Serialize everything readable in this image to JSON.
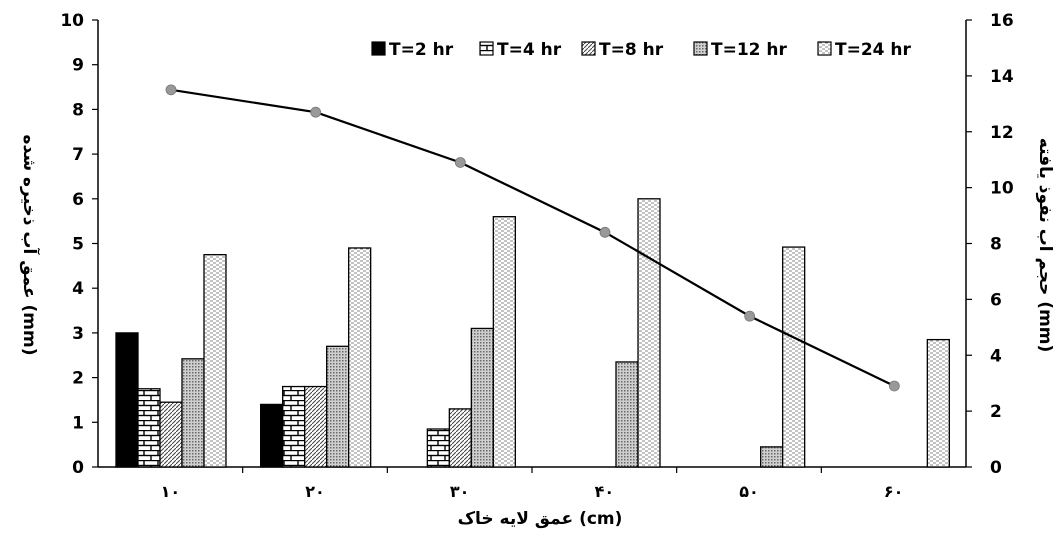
{
  "chart_data": {
    "type": "bar",
    "categories": [
      "۱۰",
      "۲۰",
      "۳۰",
      "۴۰",
      "۵۰",
      "۶۰"
    ],
    "xlabel": "عمق لایه خاک (cm)",
    "ylabel": "عمق آب ذخیره شده (mm)",
    "y2label": "حجم آب نفوذ یافته (mm)",
    "ylim": [
      0,
      10
    ],
    "y2lim": [
      0,
      16
    ],
    "yticks": [
      "0",
      "1",
      "2",
      "3",
      "4",
      "5",
      "6",
      "7",
      "8",
      "9",
      "10"
    ],
    "y2ticks": [
      "0",
      "2",
      "4",
      "6",
      "8",
      "10",
      "12",
      "14",
      "16"
    ],
    "grid": false,
    "legend_position": "top-right",
    "series": [
      {
        "name": "T=2 hr",
        "pattern": "solid-black",
        "values": [
          3.0,
          1.4,
          0,
          0,
          0,
          0
        ]
      },
      {
        "name": "T=4 hr",
        "pattern": "brick",
        "values": [
          1.75,
          1.8,
          0.85,
          0,
          0,
          0
        ]
      },
      {
        "name": "T=8 hr",
        "pattern": "diagonal",
        "values": [
          1.45,
          1.8,
          1.3,
          0,
          0,
          0
        ]
      },
      {
        "name": "T=12 hr",
        "pattern": "dotted-grid",
        "values": [
          2.42,
          2.7,
          3.1,
          2.35,
          0.45,
          0
        ]
      },
      {
        "name": "T=24 hr",
        "pattern": "dashes",
        "values": [
          4.75,
          4.9,
          5.6,
          6.0,
          4.92,
          2.85
        ]
      }
    ],
    "line_series": {
      "axis": "right",
      "color": "#000000",
      "marker_color": "#999999",
      "values": [
        13.5,
        12.7,
        10.9,
        8.4,
        5.4,
        2.9
      ]
    }
  }
}
